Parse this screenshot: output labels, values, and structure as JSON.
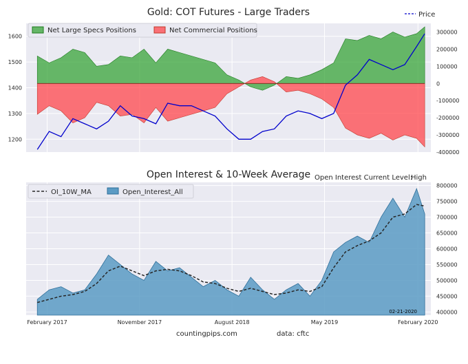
{
  "chart_data": [
    {
      "type": "area",
      "title": "Gold: COT Futures - Large Traders",
      "legend": {
        "placement": "top-left",
        "entries": [
          "Net Large Specs Positions",
          "Net Commercial Positions"
        ]
      },
      "price_legend": {
        "placement": "top-right",
        "label": "Price"
      },
      "grid": true,
      "x": [
        "2017-01-03",
        "2017-02-07",
        "2017-03-14",
        "2017-04-18",
        "2017-05-23",
        "2017-06-27",
        "2017-08-01",
        "2017-09-05",
        "2017-10-10",
        "2017-11-14",
        "2017-12-19",
        "2018-01-23",
        "2018-02-27",
        "2018-04-03",
        "2018-05-08",
        "2018-06-12",
        "2018-07-17",
        "2018-08-21",
        "2018-09-25",
        "2018-10-30",
        "2018-12-04",
        "2019-01-08",
        "2019-02-12",
        "2019-03-19",
        "2019-04-23",
        "2019-05-28",
        "2019-07-02",
        "2019-08-06",
        "2019-09-10",
        "2019-10-15",
        "2019-11-19",
        "2019-12-24",
        "2020-01-28",
        "2020-02-21"
      ],
      "x_tick_labels": [
        "February 2017",
        "November 2017",
        "August 2018",
        "May 2019",
        "February 2020"
      ],
      "series": [
        {
          "name": "Net Large Specs Positions",
          "color": "#2ca02c",
          "axis": "right",
          "values": [
            160000,
            120000,
            150000,
            200000,
            180000,
            100000,
            110000,
            160000,
            150000,
            200000,
            120000,
            200000,
            180000,
            160000,
            140000,
            120000,
            50000,
            20000,
            -20000,
            -40000,
            -10000,
            40000,
            30000,
            50000,
            80000,
            120000,
            260000,
            250000,
            280000,
            260000,
            300000,
            270000,
            290000,
            330000
          ]
        },
        {
          "name": "Net Commercial Positions",
          "color": "#ff474c",
          "axis": "right",
          "values": [
            -180000,
            -130000,
            -160000,
            -230000,
            -200000,
            -110000,
            -130000,
            -190000,
            -180000,
            -230000,
            -140000,
            -220000,
            -200000,
            -180000,
            -160000,
            -140000,
            -60000,
            -20000,
            20000,
            40000,
            10000,
            -50000,
            -40000,
            -60000,
            -90000,
            -140000,
            -260000,
            -300000,
            -320000,
            -290000,
            -330000,
            -300000,
            -320000,
            -370000
          ]
        },
        {
          "name": "Price",
          "color": "#0000cc",
          "axis": "left",
          "values": [
            1160,
            1230,
            1210,
            1280,
            1260,
            1240,
            1270,
            1330,
            1290,
            1280,
            1260,
            1340,
            1330,
            1330,
            1310,
            1290,
            1240,
            1200,
            1200,
            1230,
            1240,
            1290,
            1310,
            1300,
            1280,
            1300,
            1410,
            1450,
            1510,
            1490,
            1470,
            1490,
            1560,
            1610
          ]
        }
      ],
      "ylim_left": [
        1150,
        1650
      ],
      "yticks_left": [
        1200,
        1300,
        1400,
        1500,
        1600
      ],
      "ylim_right": [
        -400000,
        350000
      ],
      "yticks_right": [
        -400000,
        -300000,
        -200000,
        -100000,
        0,
        100000,
        200000,
        300000
      ],
      "ytick_labels_right": [
        "-400000",
        "-300000",
        "-200000",
        "-100000",
        "0",
        "100000",
        "200000",
        "300000"
      ]
    },
    {
      "type": "area",
      "title": "Open Interest & 10-Week Average",
      "status_label": "Open Interest Current Level:",
      "status_value": "High",
      "date_note": "02-21-2020",
      "legend": {
        "placement": "top-left",
        "entries": [
          "OI_10W_MA",
          "Open_Interest_All"
        ]
      },
      "grid": true,
      "x": [
        "2017-01-03",
        "2017-02-07",
        "2017-03-14",
        "2017-04-18",
        "2017-05-23",
        "2017-06-27",
        "2017-08-01",
        "2017-09-05",
        "2017-10-10",
        "2017-11-14",
        "2017-12-19",
        "2018-01-23",
        "2018-02-27",
        "2018-04-03",
        "2018-05-08",
        "2018-06-12",
        "2018-07-17",
        "2018-08-21",
        "2018-09-25",
        "2018-10-30",
        "2018-12-04",
        "2019-01-08",
        "2019-02-12",
        "2019-03-19",
        "2019-04-23",
        "2019-05-28",
        "2019-07-02",
        "2019-08-06",
        "2019-09-10",
        "2019-10-15",
        "2019-11-19",
        "2019-12-24",
        "2020-01-28",
        "2020-02-21"
      ],
      "x_tick_labels": [
        "February 2017",
        "November 2017",
        "August 2018",
        "May 2019",
        "February 2020"
      ],
      "series": [
        {
          "name": "Open_Interest_All",
          "color": "#5b9bc4",
          "values": [
            440000,
            470000,
            480000,
            460000,
            470000,
            520000,
            580000,
            550000,
            520000,
            500000,
            560000,
            530000,
            540000,
            510000,
            480000,
            500000,
            470000,
            450000,
            510000,
            470000,
            440000,
            470000,
            490000,
            450000,
            500000,
            590000,
            620000,
            640000,
            620000,
            700000,
            760000,
            700000,
            790000,
            710000
          ]
        },
        {
          "name": "OI_10W_MA",
          "color": "#262626",
          "values": [
            430000,
            440000,
            450000,
            455000,
            465000,
            490000,
            530000,
            545000,
            530000,
            515000,
            530000,
            535000,
            530000,
            515000,
            495000,
            490000,
            475000,
            465000,
            475000,
            465000,
            455000,
            460000,
            470000,
            465000,
            480000,
            540000,
            590000,
            610000,
            625000,
            650000,
            700000,
            710000,
            740000,
            735000
          ]
        }
      ],
      "ylim": [
        390000,
        810000
      ],
      "yticks": [
        400000,
        450000,
        500000,
        550000,
        600000,
        650000,
        700000,
        750000,
        800000
      ],
      "ytick_labels": [
        "400000",
        "450000",
        "500000",
        "550000",
        "600000",
        "650000",
        "700000",
        "750000",
        "800000"
      ]
    }
  ],
  "footer": {
    "site": "countingpips.com",
    "source": "data: cftc"
  }
}
